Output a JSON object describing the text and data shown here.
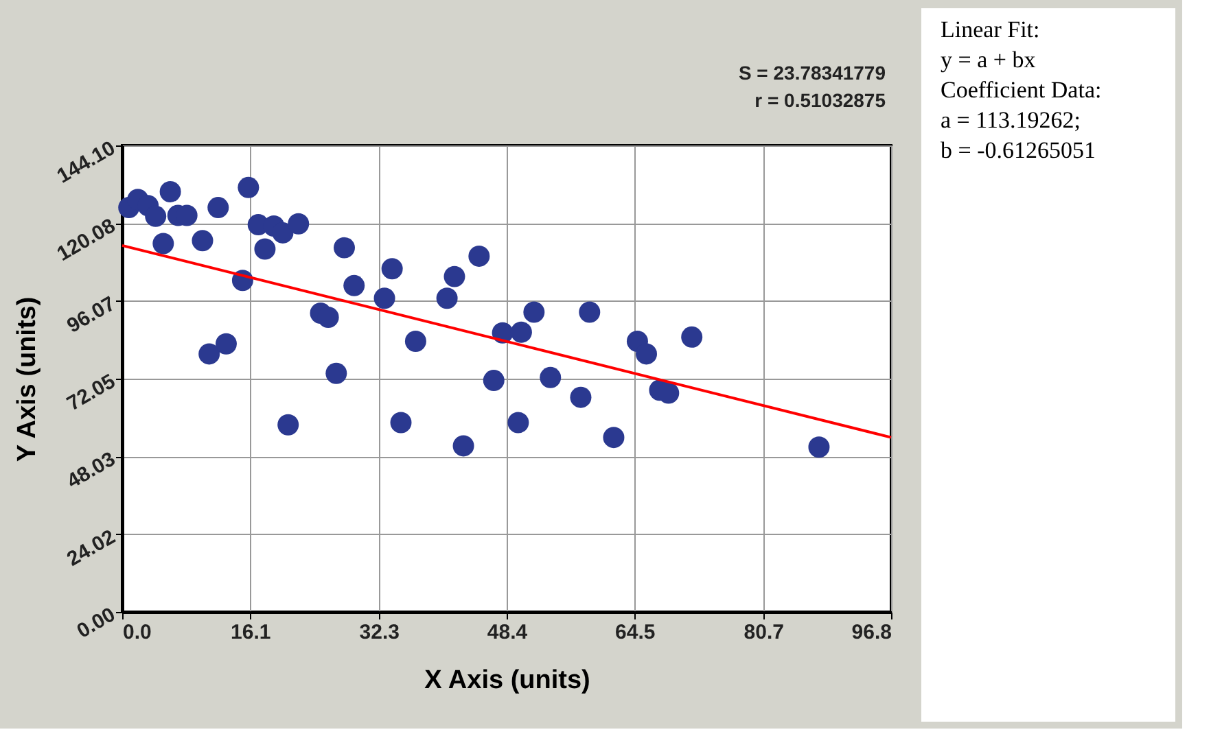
{
  "chart_data": {
    "type": "scatter",
    "xlabel": "X Axis (units)",
    "ylabel": "Y Axis (units)",
    "xlim": [
      0,
      96.8
    ],
    "ylim": [
      0,
      144.1
    ],
    "xticks": [
      {
        "value": 0,
        "label": "0.0"
      },
      16.1,
      32.3,
      48.4,
      64.5,
      80.7,
      96.8
    ],
    "yticks": [
      {
        "value": 0,
        "label": "0.00"
      },
      24.02,
      48.03,
      72.05,
      96.07,
      120.08,
      {
        "value": 144.1,
        "label": "144.10"
      }
    ],
    "grid": true,
    "annotations": [
      "S = 23.78341779",
      "r = 0.51032875",
      "Linear Fit:",
      "y = a + bx",
      "Coefficient Data:",
      "a = 113.19262;",
      "b = -0.61265051"
    ],
    "series": [
      {
        "marker": "circle",
        "color": "#2b3990",
        "x": [
          0.84,
          1.97,
          3.25,
          4.21,
          6.06,
          7.02,
          8.14,
          5.17,
          10.11,
          12.08,
          15.89,
          15.16,
          10.95,
          13.09,
          17.13,
          17.97,
          19.09,
          20.22,
          22.19,
          20.89,
          27.96,
          29.19,
          24.98,
          25.94,
          26.95,
          33.98,
          33.02,
          36.94,
          35.09,
          41.83,
          40.89,
          44.93,
          42.96,
          47.89,
          46.78,
          49.86,
          50.25,
          51.84,
          58.84,
          53.91,
          57.73,
          61.88,
          64.86,
          65.99,
          71.71,
          67.67,
          68.78,
          87.72
        ],
        "values": [
          124.9,
          127.4,
          125.5,
          122.2,
          129.8,
          122.5,
          122.5,
          113.8,
          114.7,
          124.9,
          131.1,
          102.4,
          79.7,
          82.8,
          119.6,
          112.1,
          119.2,
          117.1,
          119.9,
          57.8,
          112.5,
          100.8,
          92.3,
          91.0,
          73.7,
          106.0,
          96.9,
          83.6,
          58.5,
          103.6,
          96.9,
          109.9,
          51.3,
          86.2,
          71.5,
          58.5,
          86.4,
          92.6,
          92.6,
          72.4,
          66.3,
          53.9,
          83.6,
          79.7,
          84.9,
          68.5,
          67.6,
          50.9
        ]
      },
      {
        "type": "line",
        "line_style": "solid",
        "color": "#ff0000",
        "x": [
          0,
          96.8
        ],
        "values": [
          113.2,
          53.9
        ]
      }
    ]
  }
}
